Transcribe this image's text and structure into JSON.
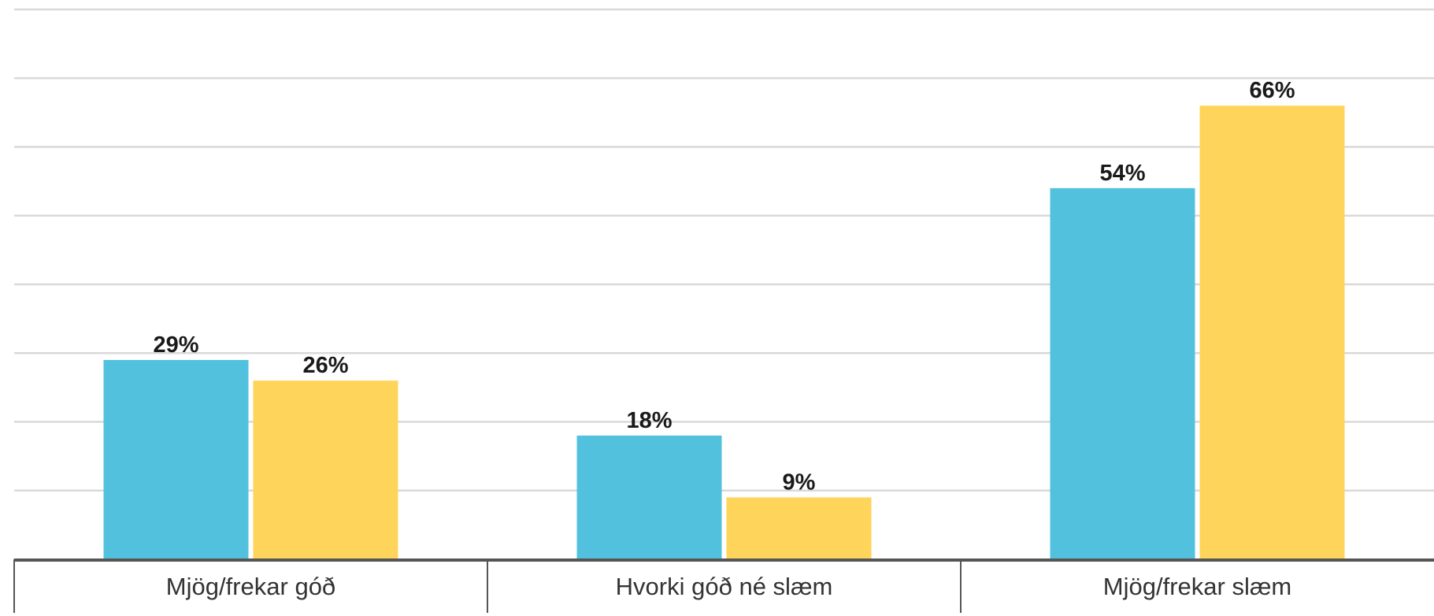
{
  "chart_data": {
    "type": "bar",
    "categories": [
      "Mjög/frekar góð",
      "Hvorki góð né slæm",
      "Mjög/frekar slæm"
    ],
    "series": [
      {
        "values": [
          29,
          18,
          54
        ],
        "value_labels": [
          "29%",
          "18%",
          "54%"
        ],
        "color": "#52C1DE"
      },
      {
        "values": [
          26,
          9,
          66
        ],
        "value_labels": [
          "26%",
          "9%",
          "66%"
        ],
        "color": "#FFD45A"
      }
    ],
    "ylim": [
      0,
      80
    ],
    "grid": true,
    "legend": "none",
    "colors": {
      "gridline": "#d9d9d9",
      "axis": "#555555"
    }
  }
}
